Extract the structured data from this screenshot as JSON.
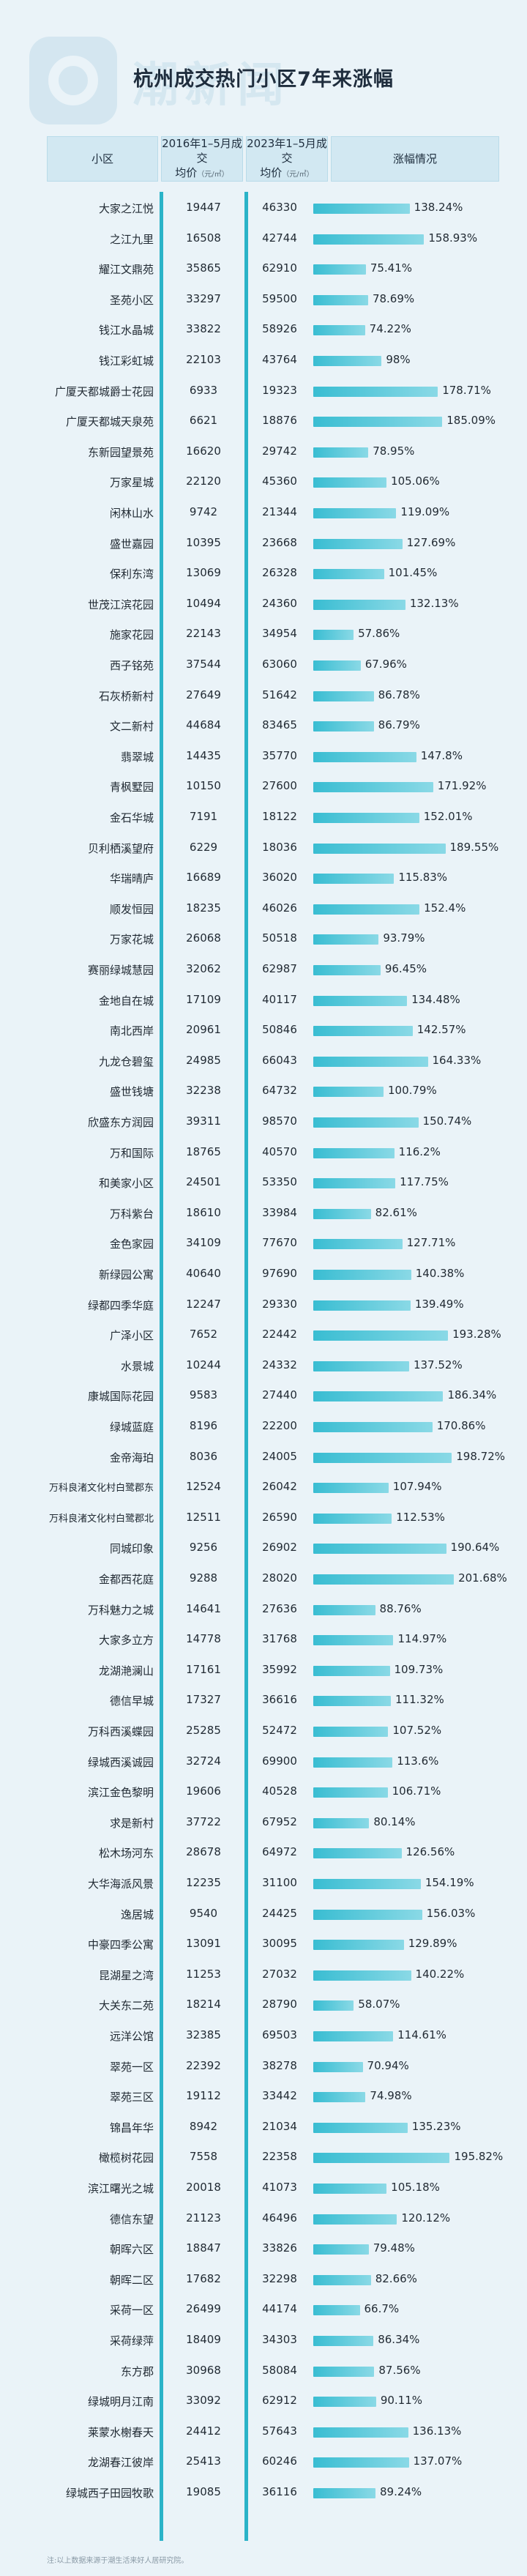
{
  "title": "杭州成交热门小区7年来涨幅",
  "headers": {
    "name": "小区",
    "p2016": "2016年1–5月成交",
    "p2023": "2023年1–5月成交",
    "price": "均价",
    "unit": "（元/㎡）",
    "change": "涨幅情况"
  },
  "footnote": "注:以上数据来源于潮生活来好人居研究院。",
  "chart_data": {
    "type": "table",
    "title": "杭州成交热门小区7年来涨幅",
    "columns": [
      "小区",
      "2016年1–5月成交均价（元/㎡）",
      "2023年1–5月成交均价（元/㎡）",
      "涨幅情况"
    ],
    "rows": [
      {
        "name": "大家之江悦",
        "p2016": "19447",
        "p2023": "46330",
        "pct": "138.24%",
        "v": 138.24
      },
      {
        "name": "之江九里",
        "p2016": "16508",
        "p2023": "42744",
        "pct": "158.93%",
        "v": 158.93
      },
      {
        "name": "耀江文鼎苑",
        "p2016": "35865",
        "p2023": "62910",
        "pct": "75.41%",
        "v": 75.41
      },
      {
        "name": "圣苑小区",
        "p2016": "33297",
        "p2023": "59500",
        "pct": "78.69%",
        "v": 78.69
      },
      {
        "name": "钱江水晶城",
        "p2016": "33822",
        "p2023": "58926",
        "pct": "74.22%",
        "v": 74.22
      },
      {
        "name": "钱江彩虹城",
        "p2016": "22103",
        "p2023": "43764",
        "pct": "98%",
        "v": 98
      },
      {
        "name": "广厦天都城爵士花园",
        "p2016": "6933",
        "p2023": "19323",
        "pct": "178.71%",
        "v": 178.71
      },
      {
        "name": "广厦天都城天泉苑",
        "p2016": "6621",
        "p2023": "18876",
        "pct": "185.09%",
        "v": 185.09
      },
      {
        "name": "东新园望景苑",
        "p2016": "16620",
        "p2023": "29742",
        "pct": "78.95%",
        "v": 78.95
      },
      {
        "name": "万家星城",
        "p2016": "22120",
        "p2023": "45360",
        "pct": "105.06%",
        "v": 105.06
      },
      {
        "name": "闲林山水",
        "p2016": "9742",
        "p2023": "21344",
        "pct": "119.09%",
        "v": 119.09
      },
      {
        "name": "盛世嘉园",
        "p2016": "10395",
        "p2023": "23668",
        "pct": "127.69%",
        "v": 127.69
      },
      {
        "name": "保利东湾",
        "p2016": "13069",
        "p2023": "26328",
        "pct": "101.45%",
        "v": 101.45
      },
      {
        "name": "世茂江滨花园",
        "p2016": "10494",
        "p2023": "24360",
        "pct": "132.13%",
        "v": 132.13
      },
      {
        "name": "施家花园",
        "p2016": "22143",
        "p2023": "34954",
        "pct": "57.86%",
        "v": 57.86
      },
      {
        "name": "西子铭苑",
        "p2016": "37544",
        "p2023": "63060",
        "pct": "67.96%",
        "v": 67.96
      },
      {
        "name": "石灰桥新村",
        "p2016": "27649",
        "p2023": "51642",
        "pct": "86.78%",
        "v": 86.78
      },
      {
        "name": "文二新村",
        "p2016": "44684",
        "p2023": "83465",
        "pct": "86.79%",
        "v": 86.79
      },
      {
        "name": "翡翠城",
        "p2016": "14435",
        "p2023": "35770",
        "pct": "147.8%",
        "v": 147.8
      },
      {
        "name": "青枫墅园",
        "p2016": "10150",
        "p2023": "27600",
        "pct": "171.92%",
        "v": 171.92
      },
      {
        "name": "金石华城",
        "p2016": "7191",
        "p2023": "18122",
        "pct": "152.01%",
        "v": 152.01
      },
      {
        "name": "贝利栖溪望府",
        "p2016": "6229",
        "p2023": "18036",
        "pct": "189.55%",
        "v": 189.55
      },
      {
        "name": "华瑞晴庐",
        "p2016": "16689",
        "p2023": "36020",
        "pct": "115.83%",
        "v": 115.83
      },
      {
        "name": "顺发恒园",
        "p2016": "18235",
        "p2023": "46026",
        "pct": "152.4%",
        "v": 152.4
      },
      {
        "name": "万家花城",
        "p2016": "26068",
        "p2023": "50518",
        "pct": "93.79%",
        "v": 93.79
      },
      {
        "name": "赛丽绿城慧园",
        "p2016": "32062",
        "p2023": "62987",
        "pct": "96.45%",
        "v": 96.45
      },
      {
        "name": "金地自在城",
        "p2016": "17109",
        "p2023": "40117",
        "pct": "134.48%",
        "v": 134.48
      },
      {
        "name": "南北西岸",
        "p2016": "20961",
        "p2023": "50846",
        "pct": "142.57%",
        "v": 142.57
      },
      {
        "name": "九龙仓碧玺",
        "p2016": "24985",
        "p2023": "66043",
        "pct": "164.33%",
        "v": 164.33
      },
      {
        "name": "盛世钱塘",
        "p2016": "32238",
        "p2023": "64732",
        "pct": "100.79%",
        "v": 100.79
      },
      {
        "name": "欣盛东方润园",
        "p2016": "39311",
        "p2023": "98570",
        "pct": "150.74%",
        "v": 150.74
      },
      {
        "name": "万和国际",
        "p2016": "18765",
        "p2023": "40570",
        "pct": "116.2%",
        "v": 116.2
      },
      {
        "name": "和美家小区",
        "p2016": "24501",
        "p2023": "53350",
        "pct": "117.75%",
        "v": 117.75
      },
      {
        "name": "万科紫台",
        "p2016": "18610",
        "p2023": "33984",
        "pct": "82.61%",
        "v": 82.61
      },
      {
        "name": "金色家园",
        "p2016": "34109",
        "p2023": "77670",
        "pct": "127.71%",
        "v": 127.71
      },
      {
        "name": "新绿园公寓",
        "p2016": "40640",
        "p2023": "97690",
        "pct": "140.38%",
        "v": 140.38
      },
      {
        "name": "绿都四季华庭",
        "p2016": "12247",
        "p2023": "29330",
        "pct": "139.49%",
        "v": 139.49
      },
      {
        "name": "广泽小区",
        "p2016": "7652",
        "p2023": "22442",
        "pct": "193.28%",
        "v": 193.28
      },
      {
        "name": "水景城",
        "p2016": "10244",
        "p2023": "24332",
        "pct": "137.52%",
        "v": 137.52
      },
      {
        "name": "康城国际花园",
        "p2016": "9583",
        "p2023": "27440",
        "pct": "186.34%",
        "v": 186.34
      },
      {
        "name": "绿城蓝庭",
        "p2016": "8196",
        "p2023": "22200",
        "pct": "170.86%",
        "v": 170.86
      },
      {
        "name": "金帝海珀",
        "p2016": "8036",
        "p2023": "24005",
        "pct": "198.72%",
        "v": 198.72
      },
      {
        "name": "万科良渚文化村白鹭郡东",
        "p2016": "12524",
        "p2023": "26042",
        "pct": "107.94%",
        "v": 107.94
      },
      {
        "name": "万科良渚文化村白鹭郡北",
        "p2016": "12511",
        "p2023": "26590",
        "pct": "112.53%",
        "v": 112.53
      },
      {
        "name": "同城印象",
        "p2016": "9256",
        "p2023": "26902",
        "pct": "190.64%",
        "v": 190.64
      },
      {
        "name": "金都西花庭",
        "p2016": "9288",
        "p2023": "28020",
        "pct": "201.68%",
        "v": 201.68
      },
      {
        "name": "万科魅力之城",
        "p2016": "14641",
        "p2023": "27636",
        "pct": "88.76%",
        "v": 88.76
      },
      {
        "name": "大家多立方",
        "p2016": "14778",
        "p2023": "31768",
        "pct": "114.97%",
        "v": 114.97
      },
      {
        "name": "龙湖滟澜山",
        "p2016": "17161",
        "p2023": "35992",
        "pct": "109.73%",
        "v": 109.73
      },
      {
        "name": "德信早城",
        "p2016": "17327",
        "p2023": "36616",
        "pct": "111.32%",
        "v": 111.32
      },
      {
        "name": "万科西溪蝶园",
        "p2016": "25285",
        "p2023": "52472",
        "pct": "107.52%",
        "v": 107.52
      },
      {
        "name": "绿城西溪诚园",
        "p2016": "32724",
        "p2023": "69900",
        "pct": "113.6%",
        "v": 113.6
      },
      {
        "name": "滨江金色黎明",
        "p2016": "19606",
        "p2023": "40528",
        "pct": "106.71%",
        "v": 106.71
      },
      {
        "name": "求是新村",
        "p2016": "37722",
        "p2023": "67952",
        "pct": "80.14%",
        "v": 80.14
      },
      {
        "name": "松木场河东",
        "p2016": "28678",
        "p2023": "64972",
        "pct": "126.56%",
        "v": 126.56
      },
      {
        "name": "大华海派风景",
        "p2016": "12235",
        "p2023": "31100",
        "pct": "154.19%",
        "v": 154.19
      },
      {
        "name": "逸居城",
        "p2016": "9540",
        "p2023": "24425",
        "pct": "156.03%",
        "v": 156.03
      },
      {
        "name": "中豪四季公寓",
        "p2016": "13091",
        "p2023": "30095",
        "pct": "129.89%",
        "v": 129.89
      },
      {
        "name": "昆湖星之湾",
        "p2016": "11253",
        "p2023": "27032",
        "pct": "140.22%",
        "v": 140.22
      },
      {
        "name": "大关东二苑",
        "p2016": "18214",
        "p2023": "28790",
        "pct": "58.07%",
        "v": 58.07
      },
      {
        "name": "远洋公馆",
        "p2016": "32385",
        "p2023": "69503",
        "pct": "114.61%",
        "v": 114.61
      },
      {
        "name": "翠苑一区",
        "p2016": "22392",
        "p2023": "38278",
        "pct": "70.94%",
        "v": 70.94
      },
      {
        "name": "翠苑三区",
        "p2016": "19112",
        "p2023": "33442",
        "pct": "74.98%",
        "v": 74.98
      },
      {
        "name": "锦昌年华",
        "p2016": "8942",
        "p2023": "21034",
        "pct": "135.23%",
        "v": 135.23
      },
      {
        "name": "橄榄树花园",
        "p2016": "7558",
        "p2023": "22358",
        "pct": "195.82%",
        "v": 195.82
      },
      {
        "name": "滨江曙光之城",
        "p2016": "20018",
        "p2023": "41073",
        "pct": "105.18%",
        "v": 105.18
      },
      {
        "name": "德信东望",
        "p2016": "21123",
        "p2023": "46496",
        "pct": "120.12%",
        "v": 120.12
      },
      {
        "name": "朝晖六区",
        "p2016": "18847",
        "p2023": "33826",
        "pct": "79.48%",
        "v": 79.48
      },
      {
        "name": "朝晖二区",
        "p2016": "17682",
        "p2023": "32298",
        "pct": "82.66%",
        "v": 82.66
      },
      {
        "name": "采荷一区",
        "p2016": "26499",
        "p2023": "44174",
        "pct": "66.7%",
        "v": 66.7
      },
      {
        "name": "采荷绿萍",
        "p2016": "18409",
        "p2023": "34303",
        "pct": "86.34%",
        "v": 86.34
      },
      {
        "name": "东方郡",
        "p2016": "30968",
        "p2023": "58084",
        "pct": "87.56%",
        "v": 87.56
      },
      {
        "name": "绿城明月江南",
        "p2016": "33092",
        "p2023": "62912",
        "pct": "90.11%",
        "v": 90.11
      },
      {
        "name": "莱蒙水榭春天",
        "p2016": "24412",
        "p2023": "57643",
        "pct": "136.13%",
        "v": 136.13
      },
      {
        "name": "龙湖春江彼岸",
        "p2016": "25413",
        "p2023": "60246",
        "pct": "137.07%",
        "v": 137.07
      },
      {
        "name": "绿城西子田园牧歌",
        "p2016": "19085",
        "p2023": "36116",
        "pct": "89.24%",
        "v": 89.24
      }
    ],
    "bar_max": 210
  }
}
